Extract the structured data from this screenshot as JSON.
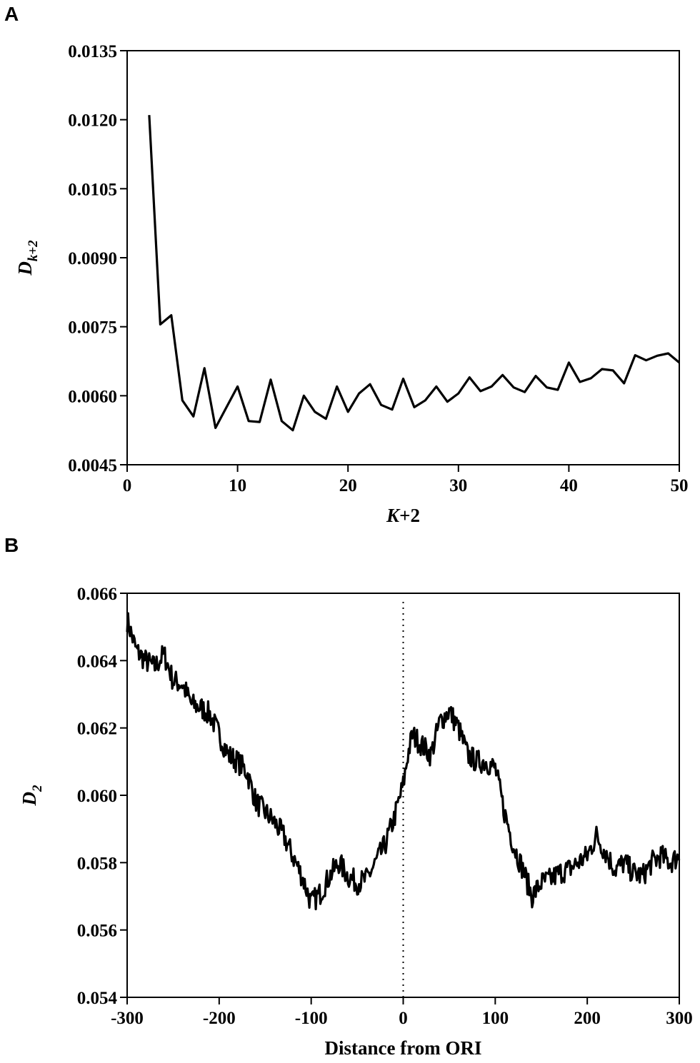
{
  "panels": [
    {
      "letter": "A",
      "chart_data": {
        "type": "line",
        "xlabel_main": "K",
        "xlabel_suffix": "+2",
        "ylabel_main": "D",
        "ylabel_sub": "k+2",
        "xlim": [
          0,
          50
        ],
        "ylim": [
          0.0045,
          0.0135
        ],
        "xticks": [
          "0",
          "10",
          "20",
          "30",
          "40",
          "50"
        ],
        "yticks": [
          "0.0045",
          "0.0060",
          "0.0075",
          "0.0090",
          "0.0105",
          "0.0120",
          "0.0135"
        ],
        "series": [
          {
            "x": [
              2,
              3,
              4,
              5,
              6,
              7,
              8,
              9,
              10,
              11,
              12,
              13,
              14,
              15,
              16,
              17,
              18,
              19,
              20,
              21,
              22,
              23,
              24,
              25,
              26,
              27,
              28,
              29,
              30,
              31,
              32,
              33,
              34,
              35,
              36,
              37,
              38,
              39,
              40,
              41,
              42,
              43,
              44,
              45,
              46,
              47,
              48,
              49,
              50
            ],
            "y": [
              0.0121,
              0.00755,
              0.00775,
              0.0059,
              0.00555,
              0.0066,
              0.0053,
              0.00575,
              0.0062,
              0.00545,
              0.00543,
              0.00635,
              0.00545,
              0.00525,
              0.006,
              0.00565,
              0.0055,
              0.0062,
              0.00565,
              0.00605,
              0.00625,
              0.0058,
              0.0057,
              0.00637,
              0.00575,
              0.0059,
              0.0062,
              0.00587,
              0.00605,
              0.0064,
              0.0061,
              0.0062,
              0.00645,
              0.00618,
              0.00608,
              0.00643,
              0.00618,
              0.00613,
              0.00672,
              0.0063,
              0.00638,
              0.00658,
              0.00655,
              0.00627,
              0.00688,
              0.00677,
              0.00687,
              0.00692,
              0.00672
            ]
          }
        ]
      }
    },
    {
      "letter": "B",
      "chart_data": {
        "type": "line",
        "xlabel": "Distance from ORI",
        "ylabel_main": "D",
        "ylabel_sub": "2",
        "xlim": [
          -300,
          300
        ],
        "ylim": [
          0.054,
          0.066
        ],
        "xticks": [
          "-300",
          "-200",
          "-100",
          "0",
          "100",
          "200",
          "300"
        ],
        "yticks": [
          "0.054",
          "0.056",
          "0.058",
          "0.060",
          "0.062",
          "0.064",
          "0.066"
        ],
        "reference_line_x": 0,
        "noise_amplitude": 0.00035,
        "series": [
          {
            "x": [
              -300,
              -290,
              -280,
              -270,
              -260,
              -250,
              -240,
              -230,
              -220,
              -210,
              -200,
              -190,
              -180,
              -170,
              -160,
              -150,
              -140,
              -130,
              -120,
              -110,
              -100,
              -90,
              -80,
              -70,
              -60,
              -50,
              -40,
              -30,
              -20,
              -10,
              0,
              5,
              10,
              20,
              30,
              40,
              50,
              60,
              70,
              80,
              90,
              100,
              110,
              120,
              130,
              140,
              150,
              160,
              170,
              180,
              190,
              200,
              210,
              220,
              230,
              240,
              250,
              260,
              270,
              280,
              290,
              300
            ],
            "y": [
              0.0652,
              0.0643,
              0.064,
              0.0638,
              0.0642,
              0.0634,
              0.0633,
              0.0627,
              0.0626,
              0.0624,
              0.0618,
              0.0612,
              0.061,
              0.0607,
              0.0598,
              0.0595,
              0.0592,
              0.0588,
              0.0582,
              0.0576,
              0.0568,
              0.0571,
              0.0576,
              0.058,
              0.0576,
              0.0574,
              0.0575,
              0.058,
              0.0585,
              0.0593,
              0.0603,
              0.0612,
              0.0618,
              0.0615,
              0.0612,
              0.0622,
              0.0625,
              0.062,
              0.0612,
              0.061,
              0.061,
              0.0608,
              0.0595,
              0.0585,
              0.0578,
              0.057,
              0.0574,
              0.0575,
              0.0577,
              0.0578,
              0.058,
              0.0582,
              0.0588,
              0.0583,
              0.0578,
              0.058,
              0.0577,
              0.0576,
              0.058,
              0.0582,
              0.058,
              0.0582
            ]
          }
        ]
      }
    }
  ]
}
